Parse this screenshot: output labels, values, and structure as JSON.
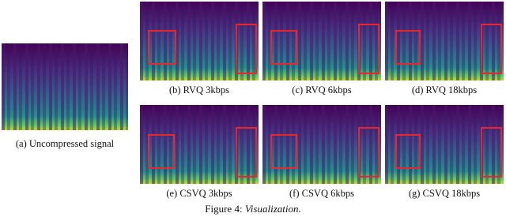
{
  "figure": {
    "panels": [
      {
        "caption": "(a) Uncompressed signal"
      },
      {
        "caption": "(b) RVQ 3kbps"
      },
      {
        "caption": "(c) RVQ 6kbps"
      },
      {
        "caption": "(d) RVQ 18kbps"
      },
      {
        "caption": "(e) CSVQ 3kbps"
      },
      {
        "caption": "(f) CSVQ 6kbps"
      },
      {
        "caption": "(g) CSVQ 18kbps"
      }
    ],
    "caption": {
      "label": "Figure 4:",
      "text": "Visualization."
    }
  }
}
